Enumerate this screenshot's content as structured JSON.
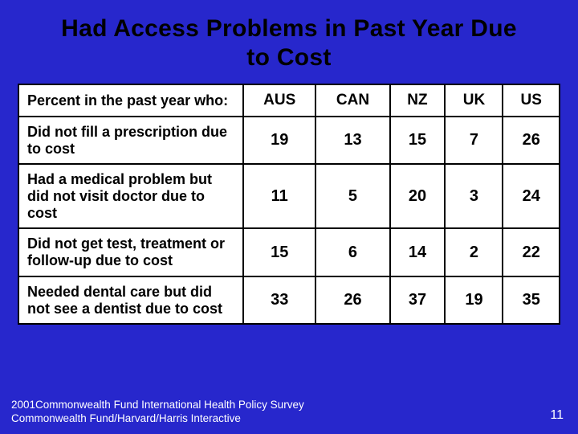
{
  "background_color": "#2727cc",
  "title": "Had Access Problems in Past Year Due to Cost",
  "title_color": "#000000",
  "title_fontsize": 30,
  "table": {
    "type": "table",
    "border_color": "#000000",
    "cell_background": "#ffffff",
    "text_color": "#000000",
    "header_row_label": "Percent in the past year who:",
    "columns": [
      "AUS",
      "CAN",
      "NZ",
      "UK",
      "US"
    ],
    "col_width_first": 280,
    "header_fontsize": 19,
    "rowhead_fontsize": 18,
    "value_fontsize": 20,
    "rows": [
      {
        "label": "Did not fill a prescription due to cost",
        "values": [
          19,
          13,
          15,
          7,
          26
        ]
      },
      {
        "label": "Had a medical problem but did not visit doctor due to cost",
        "values": [
          11,
          5,
          20,
          3,
          24
        ]
      },
      {
        "label": "Did not get test, treatment or follow-up due to cost",
        "values": [
          15,
          6,
          14,
          2,
          22
        ]
      },
      {
        "label": "Needed dental care but did not see a dentist due to cost",
        "values": [
          33,
          26,
          37,
          19,
          35
        ]
      }
    ]
  },
  "footer": {
    "line1": "2001Commonwealth Fund International Health Policy Survey",
    "line2": "Commonwealth Fund/Harvard/Harris Interactive",
    "color": "#ffffff",
    "fontsize": 13.5
  },
  "page_number": "11",
  "page_number_color": "#ffffff"
}
